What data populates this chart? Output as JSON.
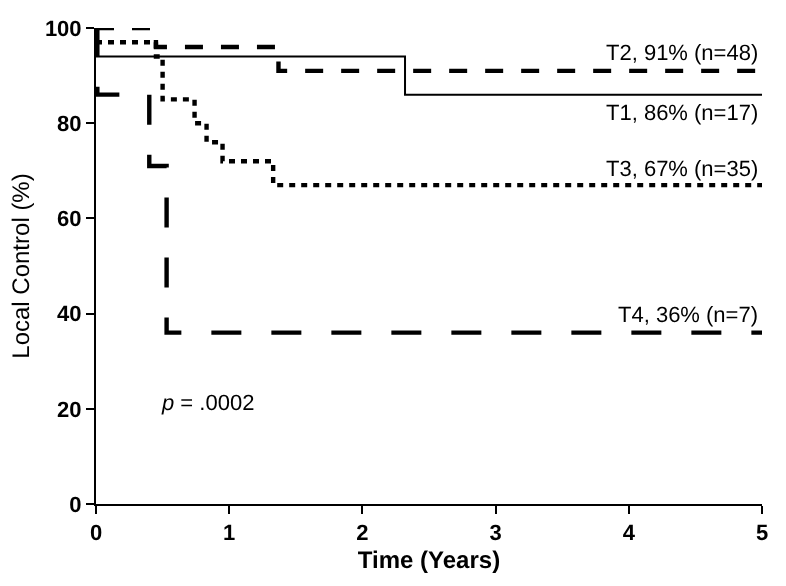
{
  "chart_data": {
    "type": "step",
    "xlabel": "Time (Years)",
    "ylabel": "Local Control (%)",
    "xlim": [
      0,
      5
    ],
    "xticks": [
      0,
      1,
      2,
      3,
      4,
      5
    ],
    "ylim": [
      0,
      100
    ],
    "yticks": [
      0,
      20,
      40,
      60,
      80,
      100
    ],
    "grid": false,
    "legend": false,
    "series": [
      {
        "name": "T1, 86% (n=17)",
        "color": "#000000",
        "line_style": "solid",
        "x": [
          0,
          2.32,
          5
        ],
        "values": [
          94,
          86,
          86
        ]
      },
      {
        "name": "T2, 91% (n=48)",
        "color": "#000000",
        "line_style": "dashed",
        "x": [
          0,
          0.45,
          1.37,
          5
        ],
        "values": [
          100,
          96,
          91,
          91
        ]
      },
      {
        "name": "T3, 67% (n=35)",
        "color": "#000000",
        "line_style": "dotted",
        "x": [
          0,
          0.45,
          0.5,
          0.74,
          0.83,
          0.95,
          1.33,
          5
        ],
        "values": [
          97,
          94,
          85,
          80,
          76,
          72,
          67,
          67
        ]
      },
      {
        "name": "T4, 36% (n=7)",
        "color": "#000000",
        "line_style": "long dashed",
        "x": [
          0,
          0.01,
          0.4,
          0.53,
          5
        ],
        "values": [
          100,
          86,
          71,
          36,
          36
        ]
      }
    ],
    "annotations": [
      "p = .0002"
    ]
  }
}
